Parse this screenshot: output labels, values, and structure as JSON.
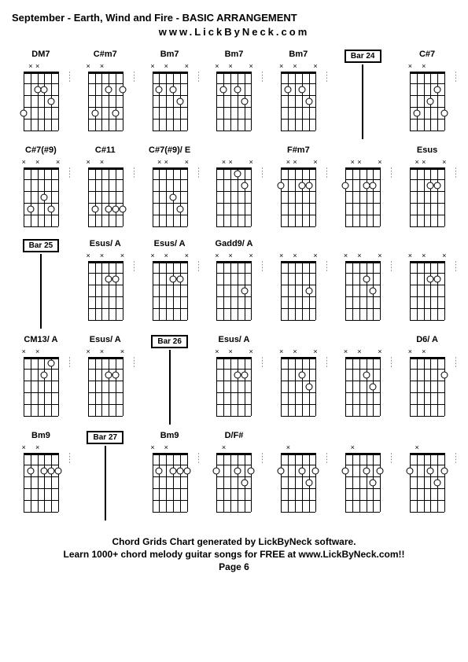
{
  "title": "September - Earth, Wind and Fire - BASIC ARRANGEMENT",
  "subtitle": "www.LickByNeck.com",
  "footer": {
    "line1": "Chord Grids Chart generated by LickByNeck software.",
    "line2": "Learn 1000+ chord melody guitar songs for FREE at www.LickByNeck.com!!",
    "page": "Page 6"
  },
  "chord_visual": {
    "num_strings": 6,
    "num_frets": 5,
    "fretboard_width": 44,
    "fretboard_height": 75,
    "string_spacing": 8.8,
    "fret_spacing": 15,
    "colors": {
      "background": "#ffffff",
      "line": "#000000",
      "dot_fill": "#ffffff",
      "dot_border": "#000000"
    },
    "font_sizes": {
      "title": 13,
      "chord_label": 11,
      "bar_label": 10,
      "footer": 12
    }
  },
  "rows": [
    [
      {
        "type": "chord",
        "label": "DM7",
        "mutes": [
          "",
          "x",
          "x",
          "",
          "",
          ""
        ],
        "dots": [
          [
            5,
            3
          ],
          [
            1,
            4
          ],
          [
            3,
            2
          ],
          [
            4,
            2
          ]
        ]
      },
      {
        "type": "chord",
        "label": "C#m7",
        "mutes": [
          "x",
          "",
          "x",
          "",
          "",
          ""
        ],
        "dots": [
          [
            2,
            4
          ],
          [
            5,
            4
          ],
          [
            4,
            2
          ],
          [
            6,
            2
          ]
        ]
      },
      {
        "type": "chord",
        "label": "Bm7",
        "mutes": [
          "x",
          "",
          "x",
          "",
          "",
          "x"
        ],
        "dots": [
          [
            2,
            2
          ],
          [
            5,
            3
          ],
          [
            4,
            2
          ]
        ]
      },
      {
        "type": "chord",
        "label": "Bm7",
        "mutes": [
          "x",
          "",
          "x",
          "",
          "",
          "x"
        ],
        "dots": [
          [
            2,
            2
          ],
          [
            5,
            3
          ],
          [
            4,
            2
          ]
        ]
      },
      {
        "type": "chord",
        "label": "Bm7",
        "mutes": [
          "x",
          "",
          "x",
          "",
          "",
          "x"
        ],
        "dots": [
          [
            2,
            2
          ],
          [
            5,
            3
          ],
          [
            4,
            2
          ]
        ]
      },
      {
        "type": "bar",
        "label": "Bar 24"
      },
      {
        "type": "chord",
        "label": "C#7",
        "mutes": [
          "x",
          "",
          "x",
          "",
          "",
          ""
        ],
        "dots": [
          [
            2,
            4
          ],
          [
            5,
            2
          ],
          [
            4,
            3
          ],
          [
            6,
            4
          ]
        ]
      }
    ],
    [
      {
        "type": "chord",
        "label": "C#7(#9)",
        "mutes": [
          "x",
          "",
          "x",
          "",
          "",
          "x"
        ],
        "dots": [
          [
            2,
            4
          ],
          [
            5,
            4
          ],
          [
            4,
            3
          ]
        ]
      },
      {
        "type": "chord",
        "label": "C#11",
        "mutes": [
          "x",
          "",
          "x",
          "",
          "",
          ""
        ],
        "dots": [
          [
            2,
            4
          ],
          [
            5,
            4
          ],
          [
            4,
            4
          ],
          [
            6,
            4
          ]
        ]
      },
      {
        "type": "chord",
        "label": "C#7(#9)/ E",
        "mutes": [
          "",
          "x",
          "x",
          "",
          "",
          "x"
        ],
        "dots": [
          [
            4,
            3
          ],
          [
            5,
            4
          ]
        ]
      },
      {
        "type": "chord",
        "label": "",
        "mutes": [
          "",
          "x",
          "x",
          "",
          "",
          "x"
        ],
        "dots": [
          [
            4,
            1
          ],
          [
            5,
            2
          ]
        ]
      },
      {
        "type": "chord",
        "label": "F#m7",
        "mutes": [
          "",
          "x",
          "x",
          "",
          "",
          "x"
        ],
        "dots": [
          [
            1,
            2
          ],
          [
            4,
            2
          ],
          [
            5,
            2
          ]
        ]
      },
      {
        "type": "chord",
        "label": "",
        "mutes": [
          "",
          "x",
          "x",
          "",
          "",
          "x"
        ],
        "dots": [
          [
            1,
            2
          ],
          [
            4,
            2
          ],
          [
            5,
            2
          ]
        ]
      },
      {
        "type": "chord",
        "label": "Esus",
        "mutes": [
          "",
          "x",
          "x",
          "",
          "",
          "x"
        ],
        "dots": [
          [
            4,
            2
          ],
          [
            5,
            2
          ]
        ]
      }
    ],
    [
      {
        "type": "bar",
        "label": "Bar 25"
      },
      {
        "type": "chord",
        "label": "Esus/ A",
        "mutes": [
          "x",
          "",
          "x",
          "",
          "",
          "x"
        ],
        "dots": [
          [
            4,
            2
          ],
          [
            5,
            2
          ]
        ]
      },
      {
        "type": "chord",
        "label": "Esus/ A",
        "mutes": [
          "x",
          "",
          "x",
          "",
          "",
          "x"
        ],
        "dots": [
          [
            4,
            2
          ],
          [
            5,
            2
          ]
        ]
      },
      {
        "type": "chord",
        "label": "Gadd9/ A",
        "mutes": [
          "x",
          "",
          "x",
          "",
          "",
          "x"
        ],
        "dots": [
          [
            5,
            3
          ]
        ]
      },
      {
        "type": "chord",
        "label": "",
        "mutes": [
          "x",
          "",
          "x",
          "",
          "",
          "x"
        ],
        "dots": [
          [
            5,
            3
          ]
        ]
      },
      {
        "type": "chord",
        "label": "",
        "mutes": [
          "x",
          "",
          "x",
          "",
          "",
          "x"
        ],
        "dots": [
          [
            4,
            2
          ],
          [
            5,
            3
          ]
        ]
      },
      {
        "type": "chord",
        "label": "",
        "mutes": [
          "x",
          "",
          "x",
          "",
          "",
          "x"
        ],
        "dots": [
          [
            4,
            2
          ],
          [
            5,
            2
          ]
        ]
      }
    ],
    [
      {
        "type": "chord",
        "label": "CM13/ A",
        "mutes": [
          "x",
          "",
          "x",
          "",
          "",
          ""
        ],
        "dots": [
          [
            4,
            2
          ],
          [
            5,
            1
          ]
        ]
      },
      {
        "type": "chord",
        "label": "Esus/ A",
        "mutes": [
          "x",
          "",
          "x",
          "",
          "",
          "x"
        ],
        "dots": [
          [
            4,
            2
          ],
          [
            5,
            2
          ]
        ]
      },
      {
        "type": "bar",
        "label": "Bar 26"
      },
      {
        "type": "chord",
        "label": "Esus/ A",
        "mutes": [
          "x",
          "",
          "x",
          "",
          "",
          "x"
        ],
        "dots": [
          [
            4,
            2
          ],
          [
            5,
            2
          ]
        ]
      },
      {
        "type": "chord",
        "label": "",
        "mutes": [
          "x",
          "",
          "x",
          "",
          "",
          "x"
        ],
        "dots": [
          [
            4,
            2
          ],
          [
            5,
            3
          ]
        ]
      },
      {
        "type": "chord",
        "label": "",
        "mutes": [
          "x",
          "",
          "x",
          "",
          "",
          "x"
        ],
        "dots": [
          [
            4,
            2
          ],
          [
            5,
            3
          ]
        ]
      },
      {
        "type": "chord",
        "label": "D6/ A",
        "mutes": [
          "x",
          "",
          "x",
          "",
          "",
          ""
        ],
        "dots": [
          [
            6,
            2
          ]
        ]
      }
    ],
    [
      {
        "type": "chord",
        "label": "Bm9",
        "mutes": [
          "x",
          "",
          "x",
          "",
          "",
          ""
        ],
        "dots": [
          [
            2,
            2
          ],
          [
            4,
            2
          ],
          [
            5,
            2
          ],
          [
            6,
            2
          ]
        ]
      },
      {
        "type": "bar",
        "label": "Bar 27"
      },
      {
        "type": "chord",
        "label": "Bm9",
        "mutes": [
          "x",
          "",
          "x",
          "",
          "",
          ""
        ],
        "dots": [
          [
            2,
            2
          ],
          [
            4,
            2
          ],
          [
            5,
            2
          ],
          [
            6,
            2
          ]
        ]
      },
      {
        "type": "chord",
        "label": "D/F#",
        "mutes": [
          "",
          "x",
          "",
          "",
          "",
          ""
        ],
        "dots": [
          [
            1,
            2
          ],
          [
            4,
            2
          ],
          [
            5,
            3
          ],
          [
            6,
            2
          ]
        ]
      },
      {
        "type": "chord",
        "label": "",
        "mutes": [
          "",
          "x",
          "",
          "",
          "",
          ""
        ],
        "dots": [
          [
            1,
            2
          ],
          [
            4,
            2
          ],
          [
            5,
            3
          ],
          [
            6,
            2
          ]
        ]
      },
      {
        "type": "chord",
        "label": "",
        "mutes": [
          "",
          "x",
          "",
          "",
          "",
          ""
        ],
        "dots": [
          [
            1,
            2
          ],
          [
            4,
            2
          ],
          [
            5,
            3
          ],
          [
            6,
            2
          ]
        ]
      },
      {
        "type": "chord",
        "label": "",
        "mutes": [
          "",
          "x",
          "",
          "",
          "",
          ""
        ],
        "dots": [
          [
            1,
            2
          ],
          [
            4,
            2
          ],
          [
            5,
            3
          ],
          [
            6,
            2
          ]
        ]
      }
    ]
  ]
}
